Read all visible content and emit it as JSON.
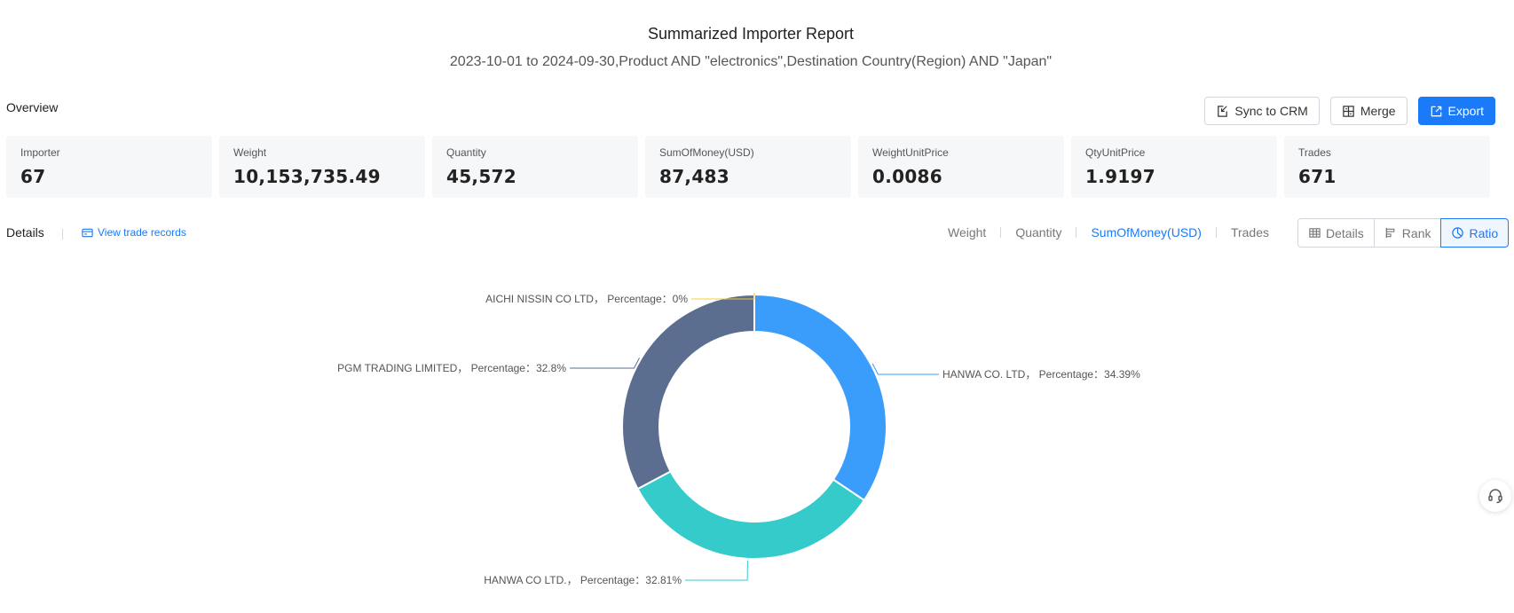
{
  "report": {
    "title": "Summarized Importer Report",
    "subtitle": "2023-10-01 to 2024-09-30,Product AND \"electronics\",Destination Country(Region) AND \"Japan\""
  },
  "overview": {
    "label": "Overview",
    "actions": {
      "sync_label": "Sync to CRM",
      "merge_label": "Merge",
      "export_label": "Export"
    },
    "stats": [
      {
        "label": "Importer",
        "value": "67"
      },
      {
        "label": "Weight",
        "value": "10,153,735.49"
      },
      {
        "label": "Quantity",
        "value": "45,572"
      },
      {
        "label": "SumOfMoney(USD)",
        "value": "87,483"
      },
      {
        "label": "WeightUnitPrice",
        "value": "0.0086"
      },
      {
        "label": "QtyUnitPrice",
        "value": "1.9197"
      },
      {
        "label": "Trades",
        "value": "671"
      }
    ]
  },
  "details": {
    "label": "Details",
    "view_records_label": "View trade records",
    "metric_tabs": [
      "Weight",
      "Quantity",
      "SumOfMoney(USD)",
      "Trades"
    ],
    "active_metric": "SumOfMoney(USD)",
    "view_tabs": [
      "Details",
      "Rank",
      "Ratio"
    ],
    "active_view": "Ratio"
  },
  "chart_data": {
    "type": "pie",
    "subtype": "donut",
    "slices": [
      {
        "label": "HANWA CO. LTD， Percentage：34.39%",
        "name": "HANWA CO. LTD",
        "value": 34.39,
        "color": "#3a9cfb"
      },
      {
        "label": "HANWA CO LTD.， Percentage：32.81%",
        "name": "HANWA CO LTD.",
        "value": 32.81,
        "color": "#35cbca"
      },
      {
        "label": "PGM TRADING LIMITED， Percentage：32.8%",
        "name": "PGM TRADING LIMITED",
        "value": 32.8,
        "color": "#5b6e8f"
      },
      {
        "label": "AICHI NISSIN CO LTD， Percentage：0%",
        "name": "AICHI NISSIN CO LTD",
        "value": 0,
        "color": "#f6c83e"
      }
    ]
  },
  "colors": {
    "accent": "#1a7af8"
  }
}
